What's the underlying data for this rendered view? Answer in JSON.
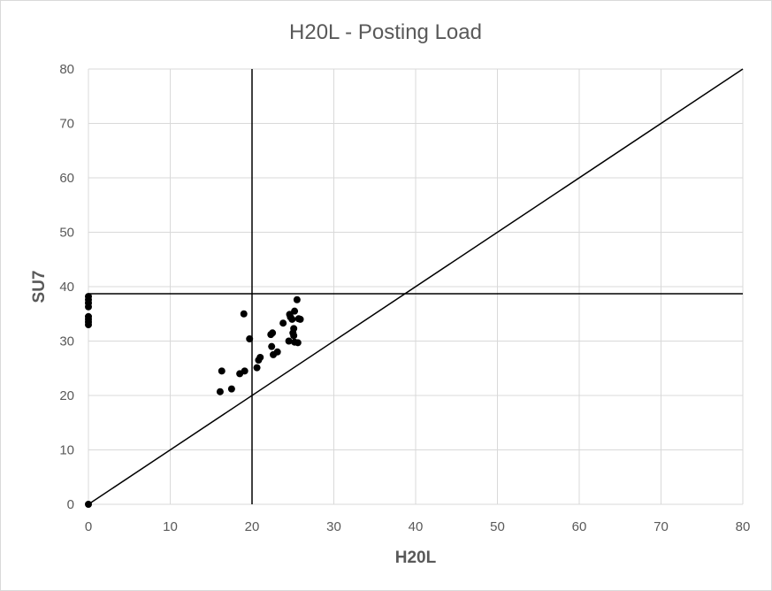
{
  "chart_data": {
    "type": "scatter",
    "title": "H20L - Posting Load",
    "xlabel": "H20L",
    "ylabel": "SU7",
    "xlim": [
      0,
      80
    ],
    "ylim": [
      0,
      80
    ],
    "xticks": [
      0,
      10,
      20,
      30,
      40,
      50,
      60,
      70,
      80
    ],
    "yticks": [
      0,
      10,
      20,
      30,
      40,
      50,
      60,
      70,
      80
    ],
    "grid": true,
    "legend": "none",
    "colors": {
      "points": "#000000",
      "grid": "#d9d9d9",
      "text": "#595959",
      "reference_lines": "#000000"
    },
    "reference_lines": {
      "vertical_x": 20,
      "horizontal_y": 38.7,
      "diagonal": [
        [
          0,
          0
        ],
        [
          80,
          80
        ]
      ]
    },
    "series": [
      {
        "points": [
          [
            0,
            0
          ],
          [
            0,
            33
          ],
          [
            0,
            33.5
          ],
          [
            0,
            34
          ],
          [
            0,
            34.5
          ],
          [
            0,
            36.3
          ],
          [
            0,
            37
          ],
          [
            0,
            37.6
          ],
          [
            0,
            38.2
          ],
          [
            16.1,
            20.7
          ],
          [
            16.3,
            24.5
          ],
          [
            17.5,
            21.2
          ],
          [
            18.5,
            24
          ],
          [
            19.1,
            24.5
          ],
          [
            19,
            35
          ],
          [
            19.7,
            30.4
          ],
          [
            20.6,
            25.1
          ],
          [
            20.8,
            26.5
          ],
          [
            21,
            27
          ],
          [
            22.3,
            31.2
          ],
          [
            22.5,
            31.5
          ],
          [
            22.4,
            29
          ],
          [
            22.6,
            27.5
          ],
          [
            23.1,
            28
          ],
          [
            23.8,
            33.3
          ],
          [
            24.5,
            30
          ],
          [
            24.6,
            34.9
          ],
          [
            24.7,
            34.4
          ],
          [
            24.9,
            34
          ],
          [
            25,
            31.5
          ],
          [
            25.1,
            32.3
          ],
          [
            25.1,
            31
          ],
          [
            25.2,
            35.5
          ],
          [
            25.2,
            29.8
          ],
          [
            25.5,
            37.6
          ],
          [
            25.7,
            34.1
          ],
          [
            25.9,
            34
          ],
          [
            25.6,
            29.7
          ]
        ]
      }
    ]
  }
}
